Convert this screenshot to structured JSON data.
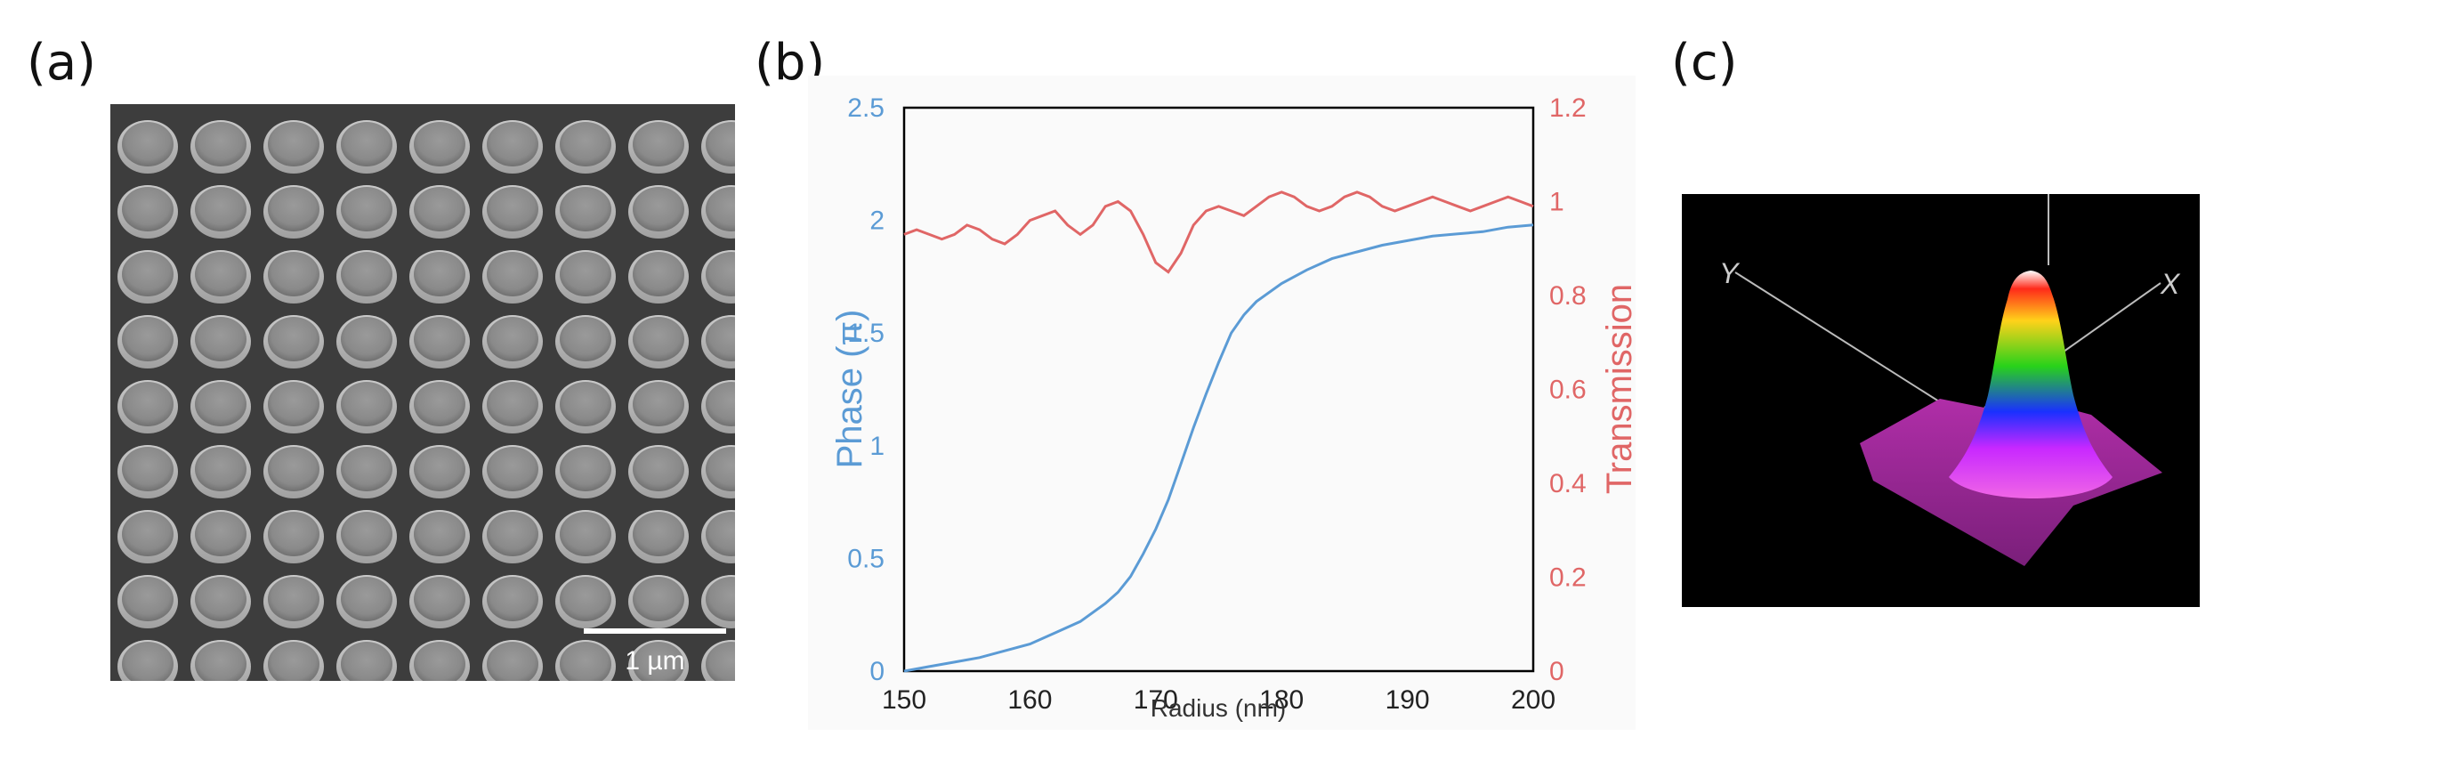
{
  "figure": {
    "panel_labels": {
      "a": "(a)",
      "b": "(b)",
      "c": "(c)"
    }
  },
  "panel_a": {
    "scale_bar_label": "1 µm",
    "pillar_rows": 9,
    "pillar_cols": 9
  },
  "panel_c": {
    "axis_x_label": "X",
    "axis_y_label": "Y"
  },
  "chart_data": {
    "type": "line",
    "xlabel": "Radius (nm)",
    "ylabel_left": "Phase (π)",
    "ylabel_right": "Transmission",
    "xlim": [
      150,
      200
    ],
    "ylim_left": [
      0,
      2.5
    ],
    "ylim_right": [
      0,
      1.2
    ],
    "x_ticks": [
      "150",
      "160",
      "170",
      "180",
      "190",
      "200"
    ],
    "y_left_ticks": [
      "0",
      "0.5",
      "1",
      "1.5",
      "2",
      "2.5"
    ],
    "y_right_ticks": [
      "0",
      "0.2",
      "0.4",
      "0.6",
      "0.8",
      "1",
      "1.2"
    ],
    "colors": {
      "phase": "#5b9bd5",
      "transmission": "#e06666"
    },
    "series": [
      {
        "axis": "left",
        "x": [
          150,
          152,
          154,
          156,
          158,
          160,
          162,
          164,
          166,
          167,
          168,
          169,
          170,
          171,
          172,
          173,
          174,
          175,
          176,
          177,
          178,
          180,
          182,
          184,
          186,
          188,
          190,
          192,
          194,
          196,
          198,
          200
        ],
        "y": [
          0.0,
          0.02,
          0.04,
          0.06,
          0.09,
          0.12,
          0.17,
          0.22,
          0.3,
          0.35,
          0.42,
          0.52,
          0.63,
          0.76,
          0.92,
          1.08,
          1.23,
          1.37,
          1.5,
          1.58,
          1.64,
          1.72,
          1.78,
          1.83,
          1.86,
          1.89,
          1.91,
          1.93,
          1.94,
          1.95,
          1.97,
          1.98
        ]
      },
      {
        "axis": "right",
        "x": [
          150,
          151,
          152,
          153,
          154,
          155,
          156,
          157,
          158,
          159,
          160,
          161,
          162,
          163,
          164,
          165,
          166,
          167,
          168,
          169,
          170,
          171,
          172,
          173,
          174,
          175,
          176,
          177,
          178,
          179,
          180,
          181,
          182,
          183,
          184,
          185,
          186,
          187,
          188,
          189,
          190,
          191,
          192,
          193,
          194,
          195,
          196,
          197,
          198,
          199,
          200
        ],
        "y": [
          0.93,
          0.94,
          0.93,
          0.92,
          0.93,
          0.95,
          0.94,
          0.92,
          0.91,
          0.93,
          0.96,
          0.97,
          0.98,
          0.95,
          0.93,
          0.95,
          0.99,
          1.0,
          0.98,
          0.93,
          0.87,
          0.85,
          0.89,
          0.95,
          0.98,
          0.99,
          0.98,
          0.97,
          0.99,
          1.01,
          1.02,
          1.01,
          0.99,
          0.98,
          0.99,
          1.01,
          1.02,
          1.01,
          0.99,
          0.98,
          0.99,
          1.0,
          1.01,
          1.0,
          0.99,
          0.98,
          0.99,
          1.0,
          1.01,
          1.0,
          0.99
        ]
      }
    ]
  }
}
